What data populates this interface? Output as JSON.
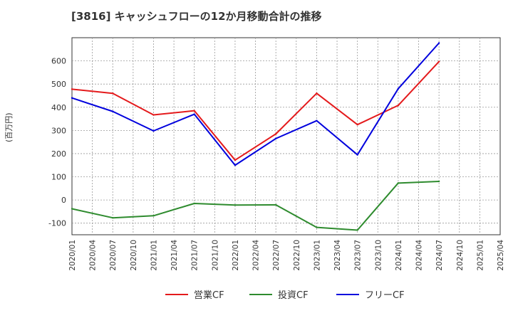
{
  "chart_data": {
    "type": "line",
    "title": "[3816]  キャッシュフローの12か月移動合計の推移",
    "ylabel": "(百万円)",
    "xlabel": "",
    "ylim": [
      -150,
      700
    ],
    "yticks": [
      -100,
      0,
      100,
      200,
      300,
      400,
      500,
      600
    ],
    "x": [
      "2020/01",
      "2020/04",
      "2020/07",
      "2020/10",
      "2021/01",
      "2021/04",
      "2021/07",
      "2021/10",
      "2022/01",
      "2022/04",
      "2022/07",
      "2022/10",
      "2023/01",
      "2023/04",
      "2023/07",
      "2023/10",
      "2024/01",
      "2024/04",
      "2024/07",
      "2024/10",
      "2025/01",
      "2025/04"
    ],
    "series": [
      {
        "name": "営業CF",
        "color": "#e41a1c",
        "values": [
          478,
          null,
          460,
          null,
          367,
          null,
          385,
          null,
          172,
          null,
          285,
          null,
          460,
          null,
          325,
          null,
          408,
          null,
          597,
          null,
          null,
          null
        ]
      },
      {
        "name": "投資CF",
        "color": "#2e8b2e",
        "values": [
          -38,
          null,
          -77,
          null,
          -68,
          null,
          -15,
          null,
          -22,
          null,
          -21,
          null,
          -118,
          null,
          -130,
          null,
          73,
          null,
          80,
          null,
          null,
          null
        ]
      },
      {
        "name": "フリーCF",
        "color": "#0000dd",
        "values": [
          440,
          null,
          382,
          null,
          298,
          null,
          370,
          null,
          150,
          null,
          265,
          null,
          342,
          null,
          195,
          null,
          480,
          null,
          677,
          null,
          null,
          null
        ]
      }
    ],
    "legend_position": "bottom",
    "grid": true
  }
}
